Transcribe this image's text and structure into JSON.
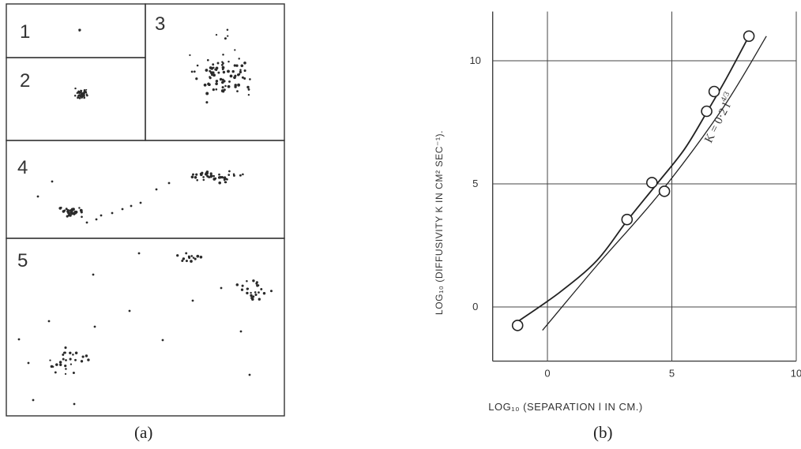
{
  "panel_a": {
    "caption": "(a)",
    "boxes": [
      {
        "label": "1"
      },
      {
        "label": "2"
      },
      {
        "label": "3"
      },
      {
        "label": "4"
      },
      {
        "label": "5"
      }
    ]
  },
  "panel_b": {
    "caption": "(b)"
  },
  "chart_data": {
    "type": "line",
    "xlabel": "LOG₁₀ (SEPARATION l IN CM.)",
    "ylabel": "LOG₁₀ (DIFFUSIVITY K IN CM² SEC⁻¹).",
    "x_ticks": [
      "0",
      "5",
      "10"
    ],
    "y_ticks": [
      "0",
      "5",
      "10"
    ],
    "xlim": [
      -2.2,
      10
    ],
    "ylim": [
      -2.2,
      12
    ],
    "grid": true,
    "series": [
      {
        "type": "scatter",
        "points": [
          [
            -1.2,
            -0.75
          ],
          [
            3.2,
            3.55
          ],
          [
            4.2,
            5.05
          ],
          [
            4.7,
            4.7
          ],
          [
            6.4,
            7.95
          ],
          [
            6.7,
            8.75
          ],
          [
            8.1,
            11.0
          ]
        ]
      },
      {
        "type": "line",
        "points": [
          [
            -1.2,
            -0.6
          ],
          [
            0.5,
            0.6
          ],
          [
            2.0,
            1.9
          ],
          [
            3.2,
            3.5
          ],
          [
            4.4,
            5.0
          ],
          [
            5.5,
            6.4
          ],
          [
            6.4,
            7.9
          ],
          [
            7.2,
            9.3
          ],
          [
            8.1,
            11.0
          ]
        ]
      },
      {
        "type": "line",
        "name": "K = 0·2 l^4/3",
        "points": [
          [
            -0.2,
            -0.95
          ],
          [
            2.0,
            1.7
          ],
          [
            4.5,
            4.6
          ],
          [
            7.0,
            8.0
          ],
          [
            8.8,
            11.0
          ]
        ]
      }
    ],
    "annotations": [
      {
        "text": "K = 0·2 l",
        "superscript": "4/3"
      }
    ]
  }
}
